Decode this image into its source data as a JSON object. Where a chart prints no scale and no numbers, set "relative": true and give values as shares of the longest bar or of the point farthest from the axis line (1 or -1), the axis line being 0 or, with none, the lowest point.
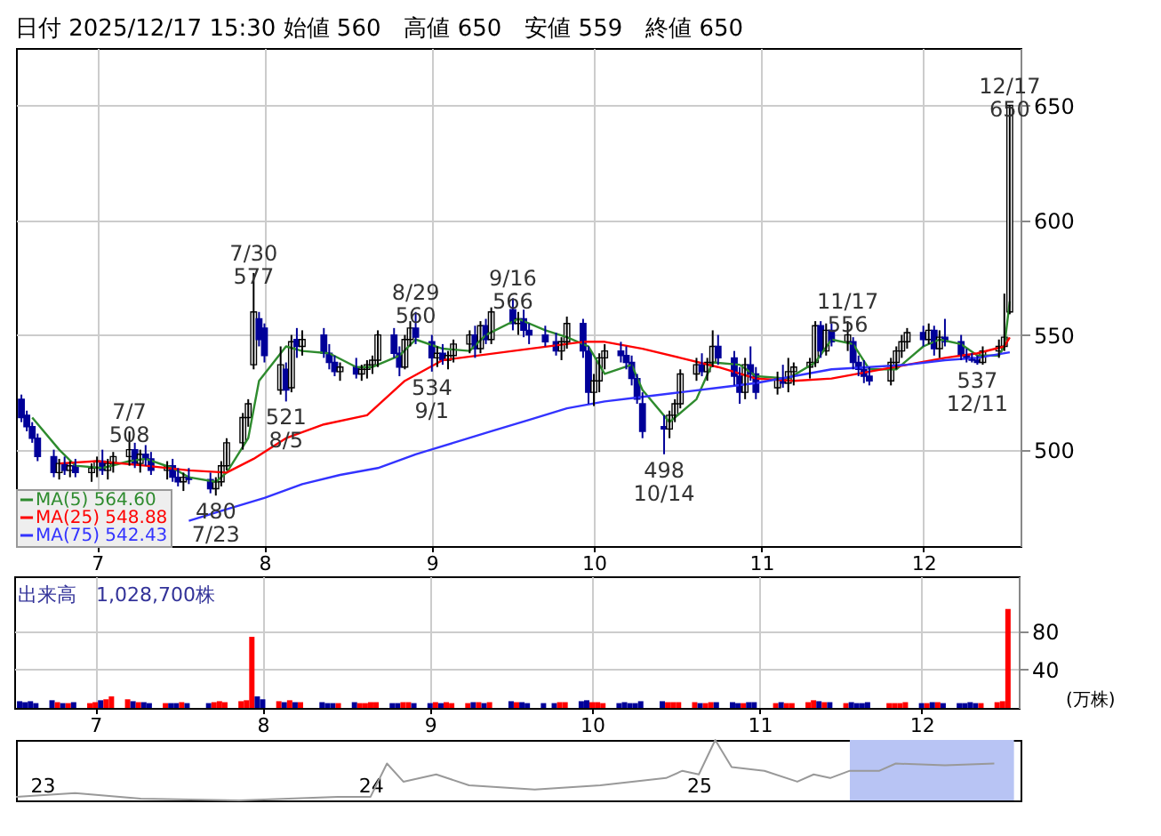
{
  "chart_data": [
    {
      "type": "candlestick",
      "title": "日付 2025/12/17 15:30 始値 560　高値 650　安値 559　終値 650",
      "x": [
        "2025-06-17",
        "2025-06-18",
        "2025-06-19",
        "2025-06-20",
        "2025-06-23",
        "2025-06-24",
        "2025-06-25",
        "2025-06-26",
        "2025-06-27",
        "2025-06-30",
        "2025-07-01",
        "2025-07-02",
        "2025-07-03",
        "2025-07-04",
        "2025-07-07",
        "2025-07-08",
        "2025-07-09",
        "2025-07-10",
        "2025-07-11",
        "2025-07-14",
        "2025-07-15",
        "2025-07-16",
        "2025-07-17",
        "2025-07-18",
        "2025-07-22",
        "2025-07-23",
        "2025-07-24",
        "2025-07-25",
        "2025-07-28",
        "2025-07-29",
        "2025-07-30",
        "2025-07-31",
        "2025-08-01",
        "2025-08-04",
        "2025-08-05",
        "2025-08-06",
        "2025-08-07",
        "2025-08-08",
        "2025-08-12",
        "2025-08-13",
        "2025-08-14",
        "2025-08-15",
        "2025-08-18",
        "2025-08-19",
        "2025-08-20",
        "2025-08-21",
        "2025-08-22",
        "2025-08-25",
        "2025-08-26",
        "2025-08-27",
        "2025-08-28",
        "2025-08-29",
        "2025-09-01",
        "2025-09-02",
        "2025-09-03",
        "2025-09-04",
        "2025-09-05",
        "2025-09-08",
        "2025-09-09",
        "2025-09-10",
        "2025-09-11",
        "2025-09-12",
        "2025-09-16",
        "2025-09-17",
        "2025-09-18",
        "2025-09-19",
        "2025-09-22",
        "2025-09-24",
        "2025-09-25",
        "2025-09-26",
        "2025-09-29",
        "2025-09-30",
        "2025-10-01",
        "2025-10-02",
        "2025-10-03",
        "2025-10-06",
        "2025-10-07",
        "2025-10-08",
        "2025-10-09",
        "2025-10-10",
        "2025-10-14",
        "2025-10-15",
        "2025-10-16",
        "2025-10-17",
        "2025-10-20",
        "2025-10-21",
        "2025-10-22",
        "2025-10-23",
        "2025-10-24",
        "2025-10-27",
        "2025-10-28",
        "2025-10-29",
        "2025-10-30",
        "2025-10-31",
        "2025-11-04",
        "2025-11-05",
        "2025-11-06",
        "2025-11-07",
        "2025-11-10",
        "2025-11-11",
        "2025-11-12",
        "2025-11-13",
        "2025-11-14",
        "2025-11-17",
        "2025-11-18",
        "2025-11-19",
        "2025-11-20",
        "2025-11-21",
        "2025-11-25",
        "2025-11-26",
        "2025-11-27",
        "2025-11-28",
        "2025-12-01",
        "2025-12-02",
        "2025-12-03",
        "2025-12-04",
        "2025-12-05",
        "2025-12-08",
        "2025-12-09",
        "2025-12-10",
        "2025-12-11",
        "2025-12-12",
        "2025-12-15",
        "2025-12-16",
        "2025-12-17"
      ],
      "xlim": [
        "2025-06-16",
        "2025-12-19"
      ],
      "xticks": [
        {
          "value": "2025-07-01",
          "label": "7"
        },
        {
          "value": "2025-08-01",
          "label": "8"
        },
        {
          "value": "2025-09-01",
          "label": "9"
        },
        {
          "value": "2025-10-01",
          "label": "10"
        },
        {
          "value": "2025-11-01",
          "label": "11"
        },
        {
          "value": "2025-12-01",
          "label": "12"
        }
      ],
      "ylim": [
        458,
        675
      ],
      "yticks": [
        500,
        550,
        600,
        650
      ],
      "grid": true,
      "legend": "bottom left",
      "annotations": [
        {
          "text": "7/7\n508",
          "x": "2025-07-07",
          "y": 508
        },
        {
          "text": "480\n7/23",
          "x": "2025-07-23",
          "y": 480
        },
        {
          "text": "7/30\n577",
          "x": "2025-07-30",
          "y": 577
        },
        {
          "text": "521\n8/5",
          "x": "2025-08-05",
          "y": 521
        },
        {
          "text": "8/29\n560",
          "x": "2025-08-29",
          "y": 560
        },
        {
          "text": "534\n9/1",
          "x": "2025-09-01",
          "y": 534
        },
        {
          "text": "9/16\n566",
          "x": "2025-09-16",
          "y": 566
        },
        {
          "text": "498\n10/14",
          "x": "2025-10-14",
          "y": 498
        },
        {
          "text": "11/17\n556",
          "x": "2025-11-17",
          "y": 556
        },
        {
          "text": "537\n12/11",
          "x": "2025-12-11",
          "y": 537
        },
        {
          "text": "12/17\n650",
          "x": "2025-12-17",
          "y": 650
        }
      ],
      "series": [
        {
          "type": "candlestick",
          "colors": [
            "#000099",
            "#000099",
            "#000099",
            "#000099",
            "#000099",
            "#ffffff",
            "#000099",
            "#ffffff",
            "#000099",
            "#ffffff",
            "#ffffff",
            "#000099",
            "#ffffff",
            "#ffffff",
            "#ffffff",
            "#000099",
            "#ffffff",
            "#000099",
            "#000099",
            "#ffffff",
            "#000099",
            "#000099",
            "#ffffff",
            "#000099",
            "#000099",
            "#ffffff",
            "#ffffff",
            "#ffffff",
            "#ffffff",
            "#ffffff",
            "#ffffff",
            "#000099",
            "#000099",
            "#ffffff",
            "#000099",
            "#ffffff",
            "#000099",
            "#ffffff",
            "#000099",
            "#000099",
            "#000099",
            "#ffffff",
            "#000099",
            "#ffffff",
            "#ffffff",
            "#ffffff",
            "#ffffff",
            "#000099",
            "#000099",
            "#ffffff",
            "#ffffff",
            "#000099",
            "#000099",
            "#ffffff",
            "#000099",
            "#ffffff",
            "#ffffff",
            "#ffffff",
            "#000099",
            "#ffffff",
            "#000099",
            "#ffffff",
            "#000099",
            "#ffffff",
            "#000099",
            "#000099",
            "#000099",
            "#000099",
            "#ffffff",
            "#ffffff",
            "#000099",
            "#000099",
            "#ffffff",
            "#ffffff",
            "#ffffff",
            "#000099",
            "#000099",
            "#000099",
            "#000099",
            "#000099",
            "#000099",
            "#ffffff",
            "#ffffff",
            "#ffffff",
            "#ffffff",
            "#000099",
            "#ffffff",
            "#ffffff",
            "#000099",
            "#000099",
            "#000099",
            "#ffffff",
            "#000099",
            "#000099",
            "#ffffff",
            "#000099",
            "#ffffff",
            "#ffffff",
            "#ffffff",
            "#ffffff",
            "#000099",
            "#ffffff",
            "#000099",
            "#ffffff",
            "#000099",
            "#000099",
            "#000099",
            "#000099",
            "#ffffff",
            "#ffffff",
            "#ffffff",
            "#ffffff",
            "#000099",
            "#ffffff",
            "#000099",
            "#ffffff",
            "#000099",
            "#000099",
            "#000099",
            "#000099",
            "#000099",
            "#ffffff",
            "#ffffff",
            "#ffffff",
            "#ffffff"
          ],
          "ohlc": [
            [
              522,
              524,
              512,
              514
            ],
            [
              515,
              517,
              508,
              510
            ],
            [
              510,
              512,
              503,
              505
            ],
            [
              505,
              507,
              495,
              497
            ],
            [
              497,
              500,
              488,
              490
            ],
            [
              490,
              496,
              487,
              494
            ],
            [
              494,
              497,
              489,
              491
            ],
            [
              491,
              495,
              488,
              493
            ],
            [
              493,
              496,
              488,
              490
            ],
            [
              490,
              494,
              486,
              492
            ],
            [
              492,
              497,
              488,
              495
            ],
            [
              495,
              500,
              489,
              491
            ],
            [
              491,
              496,
              487,
              494
            ],
            [
              494,
              499,
              490,
              497
            ],
            [
              497,
              508,
              493,
              500
            ],
            [
              500,
              503,
              492,
              494
            ],
            [
              494,
              500,
              490,
              498
            ],
            [
              498,
              502,
              493,
              496
            ],
            [
              496,
              499,
              489,
              491
            ],
            [
              491,
              495,
              487,
              493
            ],
            [
              493,
              496,
              486,
              488
            ],
            [
              488,
              492,
              484,
              486
            ],
            [
              486,
              490,
              482,
              488
            ],
            [
              488,
              492,
              485,
              487
            ],
            [
              487,
              490,
              481,
              483
            ],
            [
              483,
              488,
              480,
              486
            ],
            [
              486,
              495,
              484,
              493
            ],
            [
              493,
              505,
              491,
              503
            ],
            [
              503,
              516,
              500,
              514
            ],
            [
              514,
              522,
              510,
              520
            ],
            [
              537,
              577,
              535,
              560
            ],
            [
              557,
              560,
              545,
              548
            ],
            [
              553,
              555,
              538,
              541
            ],
            [
              526,
              545,
              524,
              537
            ],
            [
              535,
              538,
              521,
              526
            ],
            [
              527,
              550,
              525,
              547
            ],
            [
              548,
              553,
              540,
              545
            ],
            [
              545,
              552,
              541,
              548
            ],
            [
              550,
              553,
              540,
              542
            ],
            [
              542,
              546,
              535,
              538
            ],
            [
              538,
              541,
              532,
              534
            ],
            [
              534,
              538,
              530,
              536
            ],
            [
              536,
              540,
              531,
              533
            ],
            [
              533,
              537,
              530,
              535
            ],
            [
              535,
              539,
              531,
              537
            ],
            [
              537,
              541,
              533,
              539
            ],
            [
              539,
              552,
              536,
              550
            ],
            [
              550,
              553,
              540,
              542
            ],
            [
              542,
              545,
              532,
              536
            ],
            [
              536,
              550,
              535,
              548
            ],
            [
              548,
              556,
              545,
              553
            ],
            [
              553,
              560,
              546,
              549
            ],
            [
              547,
              550,
              534,
              540
            ],
            [
              540,
              545,
              536,
              542
            ],
            [
              542,
              546,
              537,
              539
            ],
            [
              539,
              543,
              535,
              541
            ],
            [
              541,
              548,
              538,
              546
            ],
            [
              546,
              552,
              542,
              550
            ],
            [
              550,
              554,
              540,
              544
            ],
            [
              544,
              556,
              542,
              554
            ],
            [
              554,
              557,
              546,
              548
            ],
            [
              548,
              562,
              546,
              560
            ],
            [
              561,
              566,
              552,
              555
            ],
            [
              555,
              560,
              550,
              557
            ],
            [
              557,
              561,
              549,
              552
            ],
            [
              552,
              555,
              546,
              550
            ],
            [
              550,
              554,
              545,
              547
            ],
            [
              547,
              551,
              541,
              543
            ],
            [
              543,
              549,
              539,
              547
            ],
            [
              547,
              558,
              544,
              555
            ],
            [
              555,
              557,
              540,
              543
            ],
            [
              543,
              545,
              520,
              525
            ],
            [
              525,
              533,
              519,
              530
            ],
            [
              530,
              542,
              525,
              540
            ],
            [
              540,
              546,
              535,
              543
            ],
            [
              543,
              547,
              538,
              541
            ],
            [
              541,
              545,
              535,
              538
            ],
            [
              538,
              541,
              528,
              531
            ],
            [
              531,
              533,
              520,
              522
            ],
            [
              520,
              525,
              505,
              508
            ],
            [
              510,
              515,
              498,
              509
            ],
            [
              509,
              517,
              505,
              515
            ],
            [
              515,
              522,
              512,
              520
            ],
            [
              520,
              535,
              518,
              533
            ],
            [
              533,
              540,
              530,
              537
            ],
            [
              537,
              542,
              532,
              534
            ],
            [
              534,
              540,
              530,
              538
            ],
            [
              538,
              552,
              536,
              545
            ],
            [
              545,
              550,
              537,
              540
            ],
            [
              540,
              543,
              528,
              532
            ],
            [
              532,
              536,
              520,
              525
            ],
            [
              525,
              540,
              522,
              537
            ],
            [
              537,
              545,
              530,
              533
            ],
            [
              533,
              536,
              522,
              525
            ],
            [
              527,
              534,
              524,
              531
            ],
            [
              531,
              537,
              527,
              529
            ],
            [
              529,
              540,
              525,
              534
            ],
            [
              534,
              538,
              528,
              536
            ],
            [
              536,
              540,
              531,
              538
            ],
            [
              538,
              556,
              536,
              554
            ],
            [
              554,
              556,
              540,
              543
            ],
            [
              543,
              555,
              541,
              552
            ],
            [
              552,
              555,
              545,
              547
            ],
            [
              547,
              556,
              543,
              550
            ],
            [
              547,
              549,
              535,
              538
            ],
            [
              538,
              541,
              532,
              535
            ],
            [
              535,
              539,
              529,
              532
            ],
            [
              532,
              536,
              528,
              530
            ],
            [
              530,
              540,
              528,
              538
            ],
            [
              538,
              545,
              535,
              543
            ],
            [
              543,
              550,
              540,
              547
            ],
            [
              547,
              553,
              544,
              551
            ],
            [
              551,
              554,
              545,
              548
            ],
            [
              548,
              555,
              546,
              552
            ],
            [
              552,
              554,
              541,
              544
            ],
            [
              544,
              552,
              540,
              549
            ],
            [
              549,
              557,
              545,
              547
            ],
            [
              547,
              550,
              539,
              541
            ],
            [
              541,
              544,
              538,
              540
            ],
            [
              540,
              542,
              538,
              539
            ],
            [
              539,
              541,
              537,
              538
            ],
            [
              538,
              545,
              537,
              543
            ],
            [
              543,
              548,
              540,
              545
            ],
            [
              545,
              568,
              543,
              549
            ],
            [
              560,
              650,
              559,
              650
            ]
          ]
        },
        {
          "type": "line",
          "name": "MA(5) 564.60",
          "color": "#2e8b2e",
          "x": [
            "2025-06-19",
            "2025-06-24",
            "2025-06-27",
            "2025-07-02",
            "2025-07-07",
            "2025-07-10",
            "2025-07-15",
            "2025-07-18",
            "2025-07-23",
            "2025-07-25",
            "2025-07-29",
            "2025-07-31",
            "2025-08-05",
            "2025-08-08",
            "2025-08-13",
            "2025-08-18",
            "2025-08-21",
            "2025-08-26",
            "2025-08-29",
            "2025-09-03",
            "2025-09-08",
            "2025-09-11",
            "2025-09-17",
            "2025-09-22",
            "2025-09-26",
            "2025-09-30",
            "2025-10-03",
            "2025-10-08",
            "2025-10-10",
            "2025-10-15",
            "2025-10-20",
            "2025-10-23",
            "2025-10-28",
            "2025-10-31",
            "2025-11-06",
            "2025-11-11",
            "2025-11-14",
            "2025-11-18",
            "2025-11-21",
            "2025-11-26",
            "2025-12-01",
            "2025-12-04",
            "2025-12-08",
            "2025-12-11",
            "2025-12-15",
            "2025-12-16",
            "2025-12-17"
          ],
          "values": [
            514,
            500,
            493,
            492,
            495,
            496,
            492,
            488,
            486,
            490,
            505,
            530,
            545,
            543,
            542,
            536,
            536,
            541,
            548,
            544,
            543,
            550,
            557,
            552,
            549,
            545,
            533,
            537,
            526,
            512,
            522,
            538,
            537,
            532,
            531,
            538,
            548,
            546,
            535,
            535,
            545,
            548,
            546,
            541,
            541,
            545,
            564.6
          ]
        },
        {
          "type": "line",
          "name": "MA(25) 548.88",
          "color": "#ff0000",
          "x": [
            "2025-06-24",
            "2025-07-01",
            "2025-07-10",
            "2025-07-18",
            "2025-07-25",
            "2025-07-30",
            "2025-08-05",
            "2025-08-12",
            "2025-08-20",
            "2025-08-27",
            "2025-09-03",
            "2025-09-16",
            "2025-09-29",
            "2025-10-03",
            "2025-10-10",
            "2025-10-17",
            "2025-10-24",
            "2025-10-31",
            "2025-11-07",
            "2025-11-14",
            "2025-11-21",
            "2025-11-28",
            "2025-12-05",
            "2025-12-11",
            "2025-12-16",
            "2025-12-17"
          ],
          "values": [
            494,
            495,
            493,
            491,
            490,
            496,
            505,
            511,
            515,
            530,
            539,
            543,
            547,
            547,
            544,
            540,
            536,
            531,
            530,
            531,
            534,
            537,
            540,
            542,
            545,
            548.88
          ]
        },
        {
          "type": "line",
          "name": "MA(75) 542.43",
          "color": "#3333ff",
          "x": [
            "2025-07-18",
            "2025-07-25",
            "2025-08-01",
            "2025-08-08",
            "2025-08-15",
            "2025-08-22",
            "2025-08-29",
            "2025-09-05",
            "2025-09-12",
            "2025-09-19",
            "2025-09-26",
            "2025-10-03",
            "2025-10-10",
            "2025-10-17",
            "2025-10-24",
            "2025-10-31",
            "2025-11-07",
            "2025-11-14",
            "2025-11-21",
            "2025-11-28",
            "2025-12-05",
            "2025-12-11",
            "2025-12-17"
          ],
          "values": [
            469,
            474,
            479,
            485,
            489,
            492,
            498,
            503,
            508,
            513,
            518,
            521,
            523,
            525,
            527,
            529,
            532,
            535,
            536,
            537,
            539,
            540,
            542.43
          ]
        }
      ]
    },
    {
      "type": "bar",
      "title": "出来高　1,028,700株",
      "ylabel": "(万株)",
      "grid": true,
      "x": [
        "2025-06-17",
        "2025-06-18",
        "2025-06-19",
        "2025-06-20",
        "2025-06-23",
        "2025-06-24",
        "2025-06-25",
        "2025-06-26",
        "2025-06-27",
        "2025-06-30",
        "2025-07-01",
        "2025-07-02",
        "2025-07-03",
        "2025-07-04",
        "2025-07-07",
        "2025-07-08",
        "2025-07-09",
        "2025-07-10",
        "2025-07-11",
        "2025-07-14",
        "2025-07-15",
        "2025-07-16",
        "2025-07-17",
        "2025-07-18",
        "2025-07-22",
        "2025-07-23",
        "2025-07-24",
        "2025-07-25",
        "2025-07-28",
        "2025-07-29",
        "2025-07-30",
        "2025-07-31",
        "2025-08-01",
        "2025-08-04",
        "2025-08-05",
        "2025-08-06",
        "2025-08-07",
        "2025-08-08",
        "2025-08-12",
        "2025-08-13",
        "2025-08-14",
        "2025-08-15",
        "2025-08-18",
        "2025-08-19",
        "2025-08-20",
        "2025-08-21",
        "2025-08-22",
        "2025-08-25",
        "2025-08-26",
        "2025-08-27",
        "2025-08-28",
        "2025-08-29",
        "2025-09-01",
        "2025-09-02",
        "2025-09-03",
        "2025-09-04",
        "2025-09-05",
        "2025-09-08",
        "2025-09-09",
        "2025-09-10",
        "2025-09-11",
        "2025-09-12",
        "2025-09-16",
        "2025-09-17",
        "2025-09-18",
        "2025-09-19",
        "2025-09-22",
        "2025-09-24",
        "2025-09-25",
        "2025-09-26",
        "2025-09-29",
        "2025-09-30",
        "2025-10-01",
        "2025-10-02",
        "2025-10-03",
        "2025-10-06",
        "2025-10-07",
        "2025-10-08",
        "2025-10-09",
        "2025-10-10",
        "2025-10-14",
        "2025-10-15",
        "2025-10-16",
        "2025-10-17",
        "2025-10-20",
        "2025-10-21",
        "2025-10-22",
        "2025-10-23",
        "2025-10-24",
        "2025-10-27",
        "2025-10-28",
        "2025-10-29",
        "2025-10-30",
        "2025-10-31",
        "2025-11-04",
        "2025-11-05",
        "2025-11-06",
        "2025-11-07",
        "2025-11-10",
        "2025-11-11",
        "2025-11-12",
        "2025-11-13",
        "2025-11-14",
        "2025-11-17",
        "2025-11-18",
        "2025-11-19",
        "2025-11-20",
        "2025-11-21",
        "2025-11-25",
        "2025-11-26",
        "2025-11-27",
        "2025-11-28",
        "2025-12-01",
        "2025-12-02",
        "2025-12-03",
        "2025-12-04",
        "2025-12-05",
        "2025-12-08",
        "2025-12-09",
        "2025-12-10",
        "2025-12-11",
        "2025-12-12",
        "2025-12-15",
        "2025-12-16",
        "2025-12-17"
      ],
      "xlim": [
        "2025-06-16",
        "2025-12-19"
      ],
      "xticks": [
        {
          "value": "2025-07-01",
          "label": "7"
        },
        {
          "value": "2025-08-01",
          "label": "8"
        },
        {
          "value": "2025-09-01",
          "label": "9"
        },
        {
          "value": "2025-10-01",
          "label": "10"
        },
        {
          "value": "2025-11-01",
          "label": "11"
        },
        {
          "value": "2025-12-01",
          "label": "12"
        }
      ],
      "ylim": [
        0,
        137
      ],
      "yticks": [
        40,
        80
      ],
      "values": [
        7,
        6,
        7,
        5,
        8,
        6,
        5,
        5,
        6,
        5,
        6,
        8,
        9,
        12,
        9,
        7,
        6,
        6,
        5,
        5,
        5,
        5,
        6,
        5,
        5,
        6,
        7,
        6,
        7,
        8,
        74,
        12,
        9,
        7,
        6,
        8,
        6,
        6,
        6,
        5,
        5,
        5,
        6,
        5,
        5,
        6,
        6,
        5,
        5,
        6,
        6,
        5,
        5,
        6,
        5,
        6,
        5,
        5,
        6,
        6,
        5,
        6,
        7,
        6,
        6,
        5,
        5,
        5,
        6,
        6,
        7,
        8,
        6,
        6,
        5,
        5,
        6,
        5,
        5,
        7,
        7,
        6,
        6,
        6,
        6,
        5,
        5,
        6,
        6,
        6,
        5,
        5,
        6,
        6,
        5,
        6,
        5,
        5,
        6,
        8,
        7,
        6,
        6,
        5,
        6,
        5,
        5,
        6,
        5,
        5,
        5,
        6,
        5,
        5,
        6,
        6,
        5,
        5,
        5,
        6,
        5,
        5,
        6,
        7,
        103
      ],
      "colors": [
        "#000099",
        "#000099",
        "#000099",
        "#000099",
        "#000099",
        "#ff0000",
        "#000099",
        "#ff0000",
        "#000099",
        "#ff0000",
        "#ff0000",
        "#000099",
        "#ff0000",
        "#ff0000",
        "#ff0000",
        "#000099",
        "#ff0000",
        "#000099",
        "#000099",
        "#ff0000",
        "#000099",
        "#000099",
        "#ff0000",
        "#000099",
        "#000099",
        "#ff0000",
        "#ff0000",
        "#ff0000",
        "#ff0000",
        "#ff0000",
        "#ff0000",
        "#000099",
        "#000099",
        "#ff0000",
        "#000099",
        "#ff0000",
        "#000099",
        "#ff0000",
        "#000099",
        "#000099",
        "#000099",
        "#ff0000",
        "#000099",
        "#ff0000",
        "#ff0000",
        "#ff0000",
        "#ff0000",
        "#000099",
        "#000099",
        "#ff0000",
        "#ff0000",
        "#000099",
        "#000099",
        "#ff0000",
        "#000099",
        "#ff0000",
        "#ff0000",
        "#ff0000",
        "#000099",
        "#ff0000",
        "#000099",
        "#ff0000",
        "#000099",
        "#ff0000",
        "#000099",
        "#000099",
        "#000099",
        "#000099",
        "#ff0000",
        "#ff0000",
        "#000099",
        "#000099",
        "#ff0000",
        "#ff0000",
        "#ff0000",
        "#000099",
        "#000099",
        "#000099",
        "#000099",
        "#000099",
        "#000099",
        "#ff0000",
        "#ff0000",
        "#ff0000",
        "#ff0000",
        "#000099",
        "#ff0000",
        "#ff0000",
        "#000099",
        "#000099",
        "#000099",
        "#ff0000",
        "#000099",
        "#000099",
        "#ff0000",
        "#000099",
        "#ff0000",
        "#ff0000",
        "#ff0000",
        "#ff0000",
        "#000099",
        "#ff0000",
        "#000099",
        "#ff0000",
        "#000099",
        "#000099",
        "#000099",
        "#000099",
        "#ff0000",
        "#ff0000",
        "#ff0000",
        "#ff0000",
        "#000099",
        "#ff0000",
        "#000099",
        "#ff0000",
        "#000099",
        "#000099",
        "#000099",
        "#000099",
        "#000099",
        "#ff0000",
        "#ff0000",
        "#ff0000",
        "#ff0000"
      ]
    },
    {
      "type": "line",
      "relative": true,
      "color": "#999999",
      "x": [
        2022.92,
        2023.1,
        2023.3,
        2023.6,
        2023.9,
        2024.0,
        2024.05,
        2024.1,
        2024.2,
        2024.3,
        2024.5,
        2024.7,
        2024.9,
        2024.95,
        2025.0,
        2025.05,
        2025.1,
        2025.2,
        2025.3,
        2025.35,
        2025.4,
        2025.46,
        2025.55,
        2025.6,
        2025.75,
        2025.9
      ],
      "values": [
        0.06,
        0.12,
        0.03,
        0,
        0.06,
        0.06,
        0.61,
        0.31,
        0.43,
        0.25,
        0.18,
        0.25,
        0.37,
        0.49,
        0.43,
        1,
        0.55,
        0.49,
        0.31,
        0.43,
        0.37,
        0.49,
        0.49,
        0.61,
        0.58,
        0.61
      ],
      "xlim": [
        2022.92,
        2025.98
      ],
      "xticks": [
        {
          "value": 2023,
          "label": "23"
        },
        {
          "value": 2024,
          "label": "24"
        },
        {
          "value": 2025,
          "label": "25"
        }
      ],
      "bands": [
        {
          "axis": "x",
          "from": 2025.46,
          "to": 2025.96,
          "color": "#b8c4f4"
        }
      ]
    }
  ]
}
